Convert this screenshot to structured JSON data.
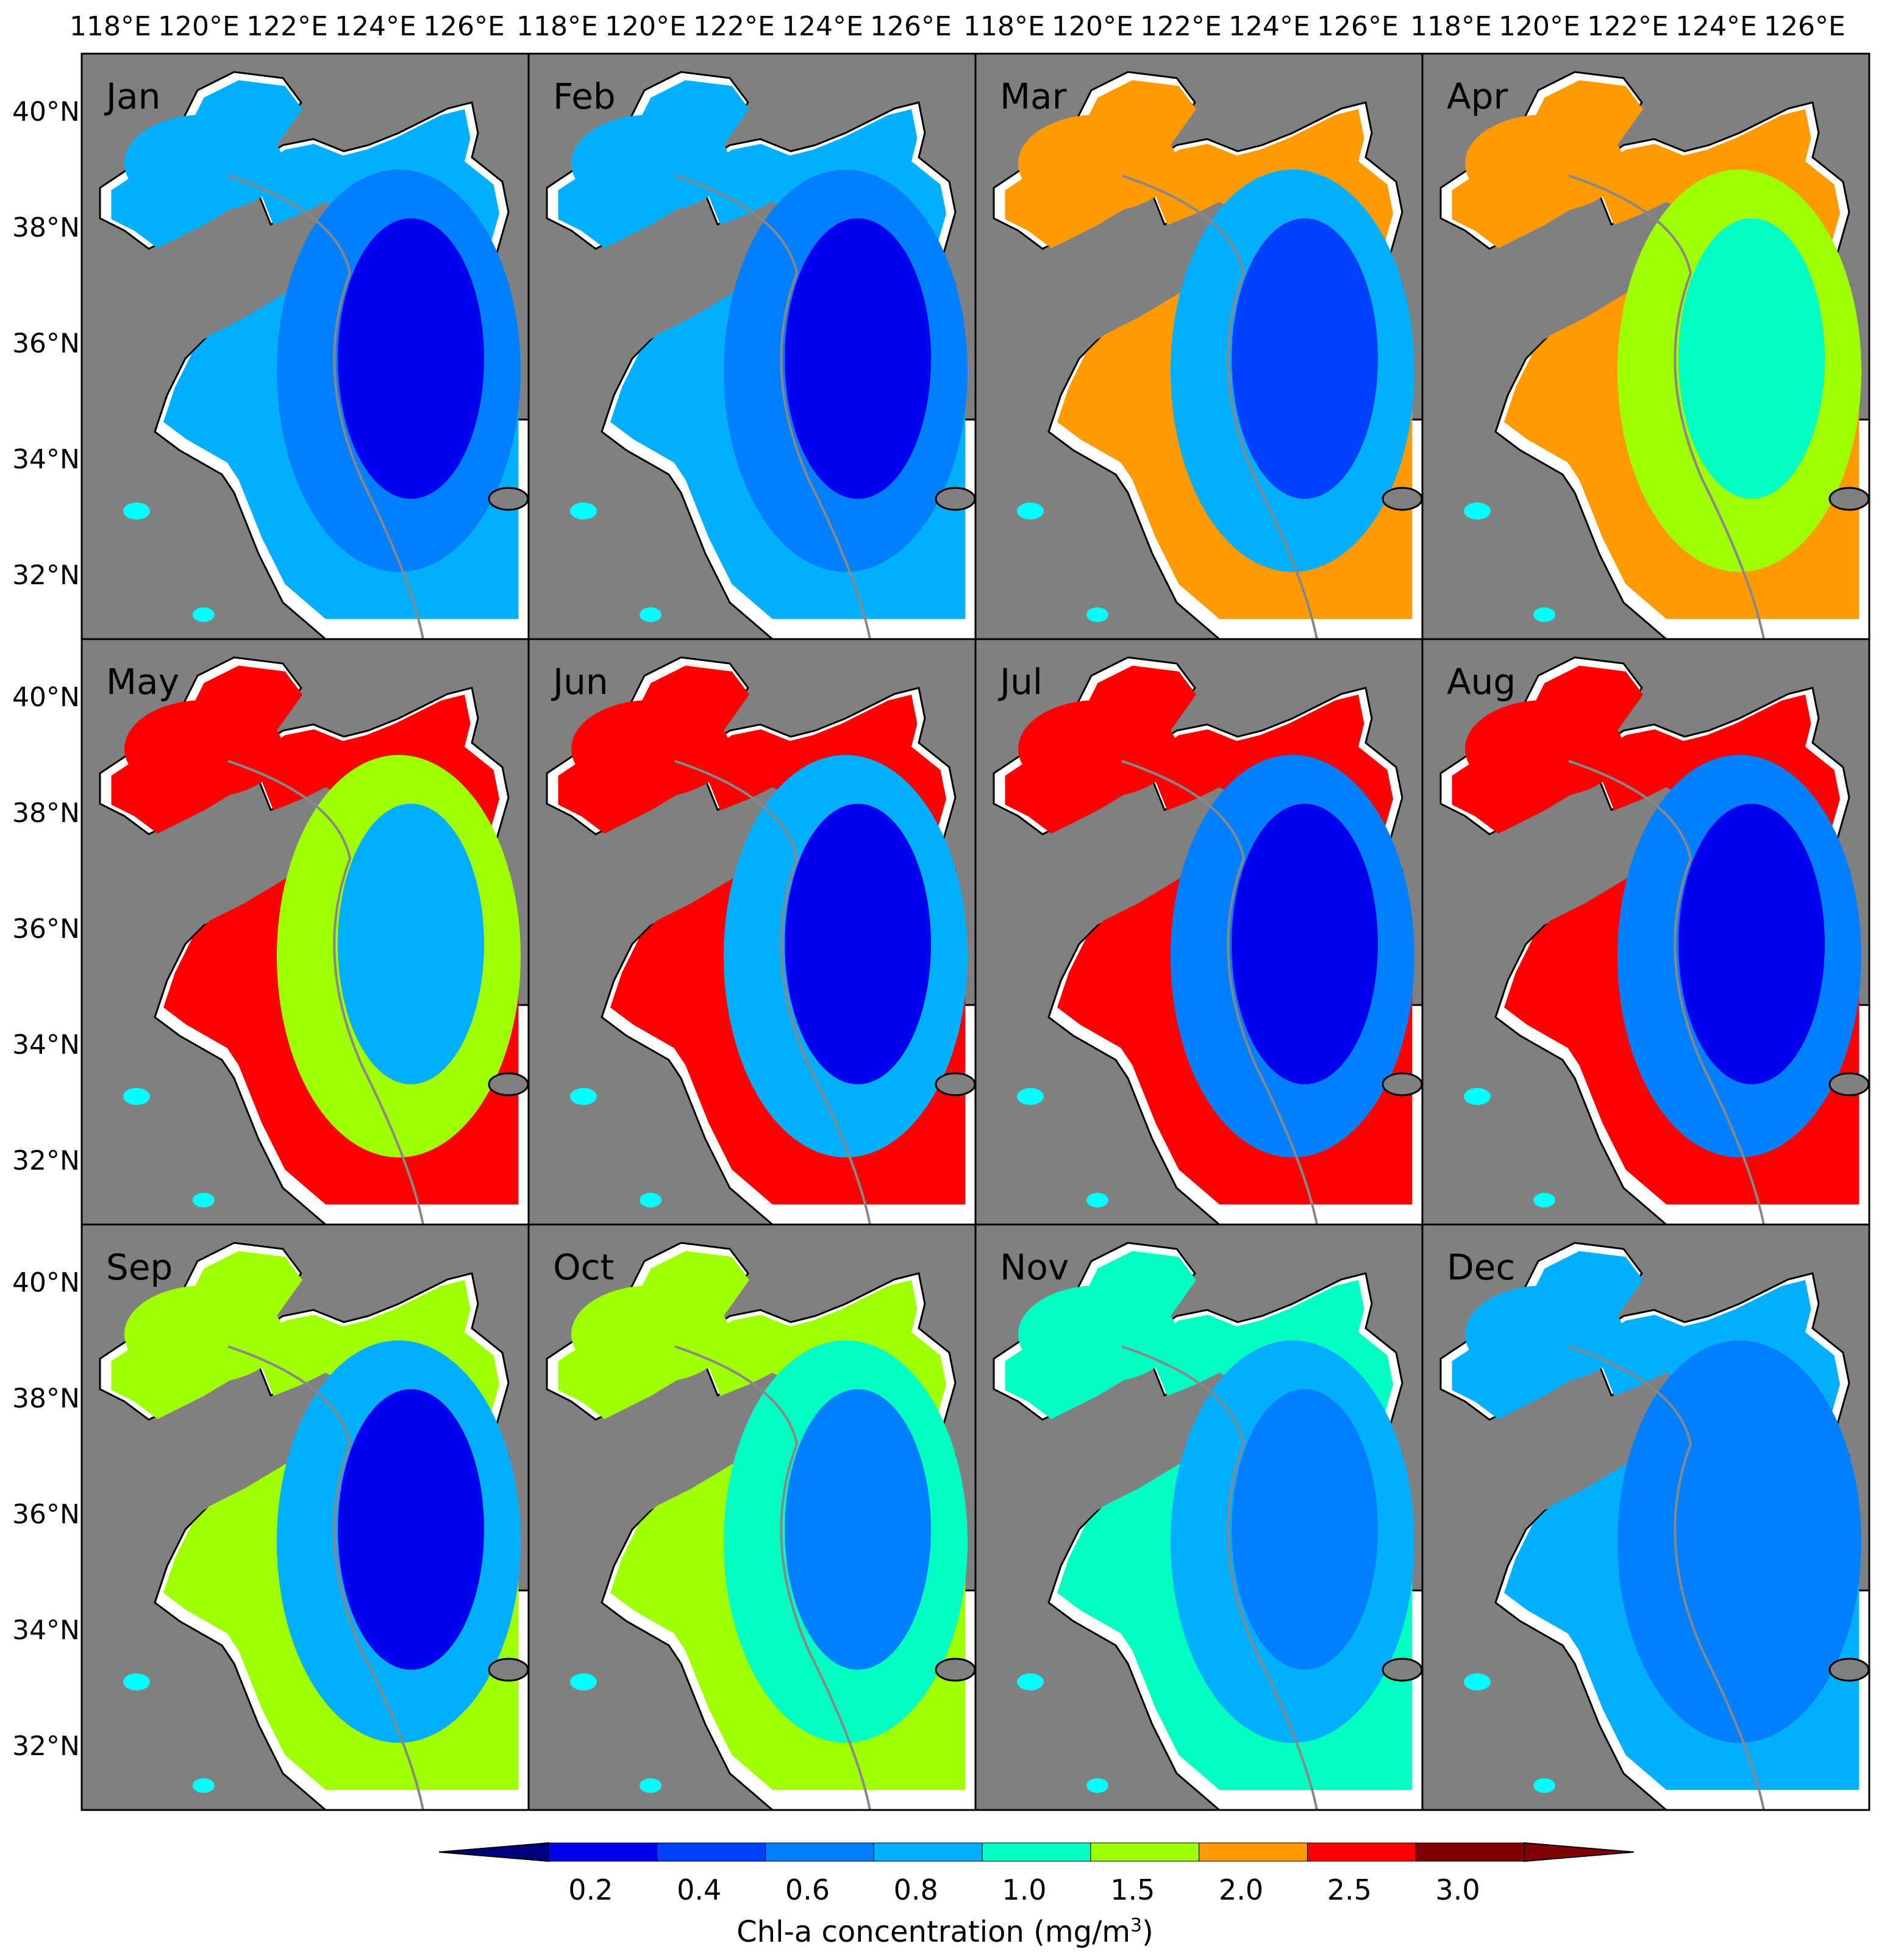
{
  "figure": {
    "months": [
      "Jan",
      "Feb",
      "Mar",
      "Apr",
      "May",
      "Jun",
      "Jul",
      "Aug",
      "Sep",
      "Oct",
      "Nov",
      "Dec"
    ],
    "lon_ticks": [
      "118°E",
      "120°E",
      "122°E",
      "124°E",
      "126°E"
    ],
    "lat_ticks": [
      "40°N",
      "38°N",
      "36°N",
      "34°N",
      "32°N"
    ],
    "colorbar": {
      "ticks": [
        "0.2",
        "0.4",
        "0.6",
        "0.8",
        "1.0",
        "1.5",
        "2.0",
        "2.5",
        "3.0"
      ],
      "label": "Chl-a concentration (mg/m",
      "label_sup": "3",
      "label_close": ")",
      "colors": [
        "#00007f",
        "#0000f0",
        "#0040ff",
        "#0080ff",
        "#00b0ff",
        "#00ffc0",
        "#a0ff00",
        "#ff9a00",
        "#ff0000",
        "#800000"
      ]
    },
    "colors": {
      "land": "#808080",
      "coast": "#000000",
      "nodata": "#ffffff",
      "lakes": "#00ffff",
      "isobath": "#888888"
    }
  }
}
